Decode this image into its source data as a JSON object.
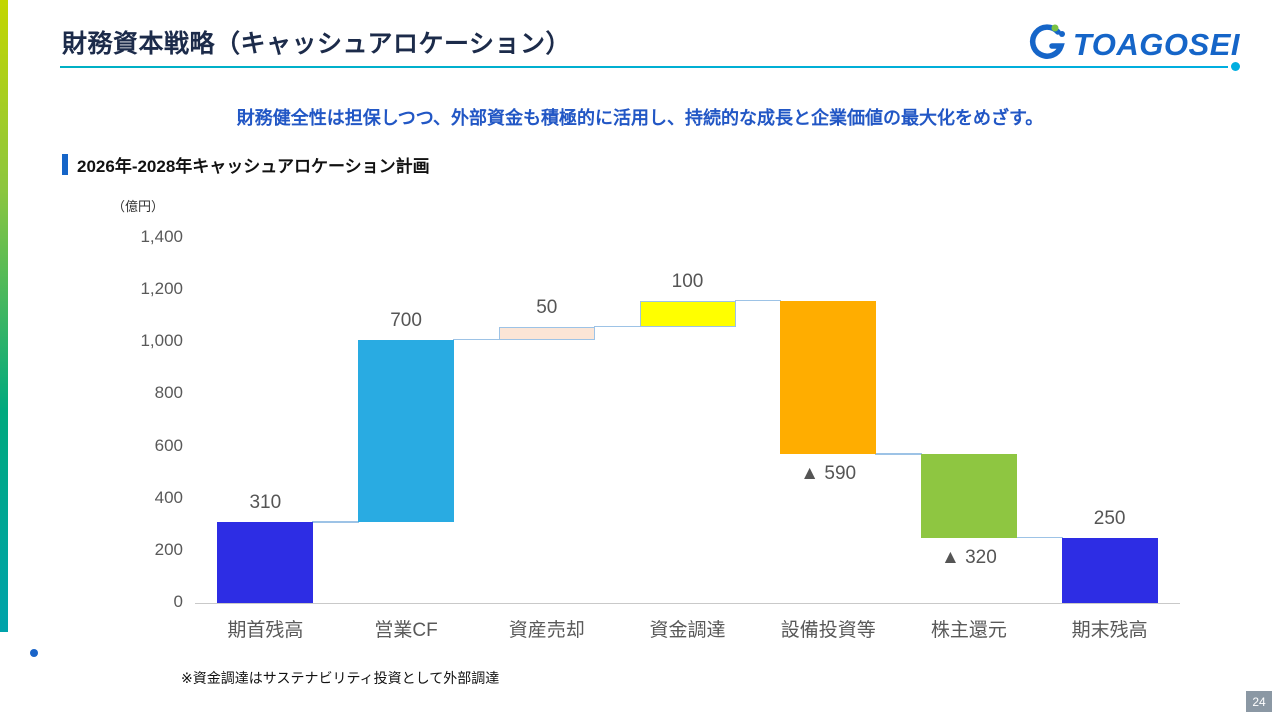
{
  "slide": {
    "title": "財務資本戦略（キャッシュアロケーション）",
    "logo_text": "TOAGOSEI",
    "subtitle": "財務健全性は担保しつつ、外部資金も積極的に活用し、持続的な成長と企業価値の最大化をめざす。",
    "section_heading": "2026年-2028年キャッシュアロケーション計画",
    "unit_label": "（億円）",
    "footnote": "※資金調達はサステナビリティ投資として外部調達",
    "page_number": "24"
  },
  "chart_data": {
    "type": "bar",
    "subtype": "waterfall",
    "title": "2026年-2028年キャッシュアロケーション計画",
    "ylabel": "（億円）",
    "categories": [
      "期首残高",
      "営業CF",
      "資産売却",
      "資金調達",
      "設備投資等",
      "株主還元",
      "期末残高"
    ],
    "values": [
      310,
      700,
      50,
      100,
      -590,
      -320,
      250
    ],
    "labels": [
      "310",
      "700",
      "50",
      "100",
      "▲ 590",
      "▲ 320",
      "250"
    ],
    "bar_starts": [
      0,
      310,
      1010,
      1060,
      570,
      250,
      0
    ],
    "bar_ends": [
      310,
      1010,
      1060,
      1160,
      1160,
      570,
      250
    ],
    "colors": [
      "#2d2de4",
      "#29abe2",
      "#fbe5d6",
      "#ffff00",
      "#ffad00",
      "#8ec641",
      "#2d2de4"
    ],
    "bar_borders": [
      "none",
      "none",
      "#9dc3e6",
      "#9dc3e6",
      "none",
      "none",
      "none"
    ],
    "label_positions": [
      "above",
      "above",
      "above",
      "above",
      "below",
      "below",
      "above"
    ],
    "connector_levels": [
      310,
      1010,
      1060,
      1160,
      570,
      250
    ],
    "connector_color": "#9dc3e6",
    "ylim": [
      0,
      1400
    ],
    "ytick_step": 200,
    "yticks": [
      "0",
      "200",
      "400",
      "600",
      "800",
      "1,000",
      "1,200",
      "1,400"
    ],
    "grid": false,
    "legend": false
  }
}
